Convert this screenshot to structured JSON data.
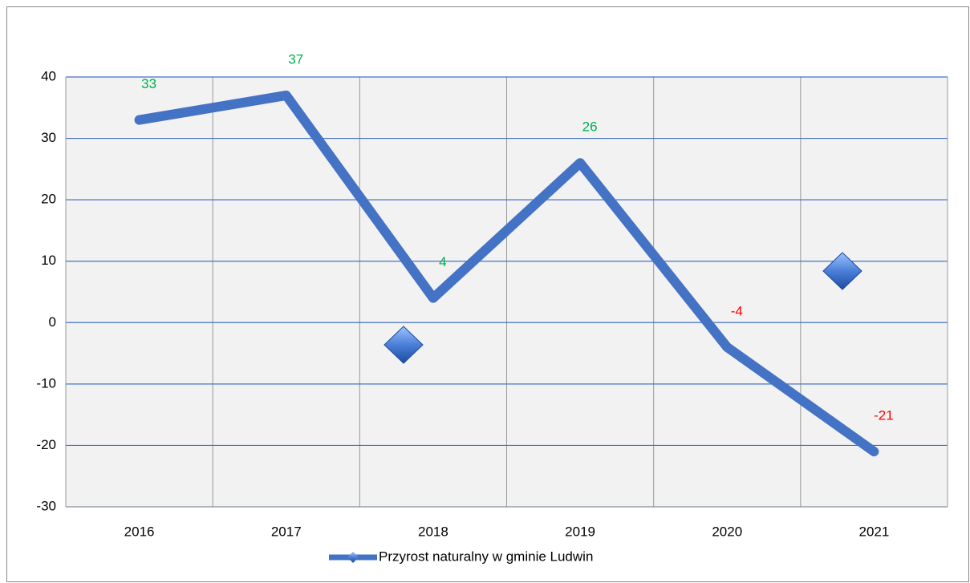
{
  "chart_data": {
    "type": "line",
    "categories": [
      "2016",
      "2017",
      "2018",
      "2019",
      "2020",
      "2021"
    ],
    "series": [
      {
        "name": "Przyrost naturalny w gminie Ludwin",
        "color": "#4472c4",
        "values": [
          33,
          37,
          4,
          26,
          -4,
          -21
        ]
      }
    ],
    "ylim": [
      -30,
      40
    ],
    "yticks": [
      -30,
      -20,
      -10,
      0,
      10,
      20,
      30,
      40
    ],
    "grid": true,
    "legend": "bottom",
    "label_colors": {
      "positive": "#00b050",
      "negative": "#ff0000"
    }
  }
}
